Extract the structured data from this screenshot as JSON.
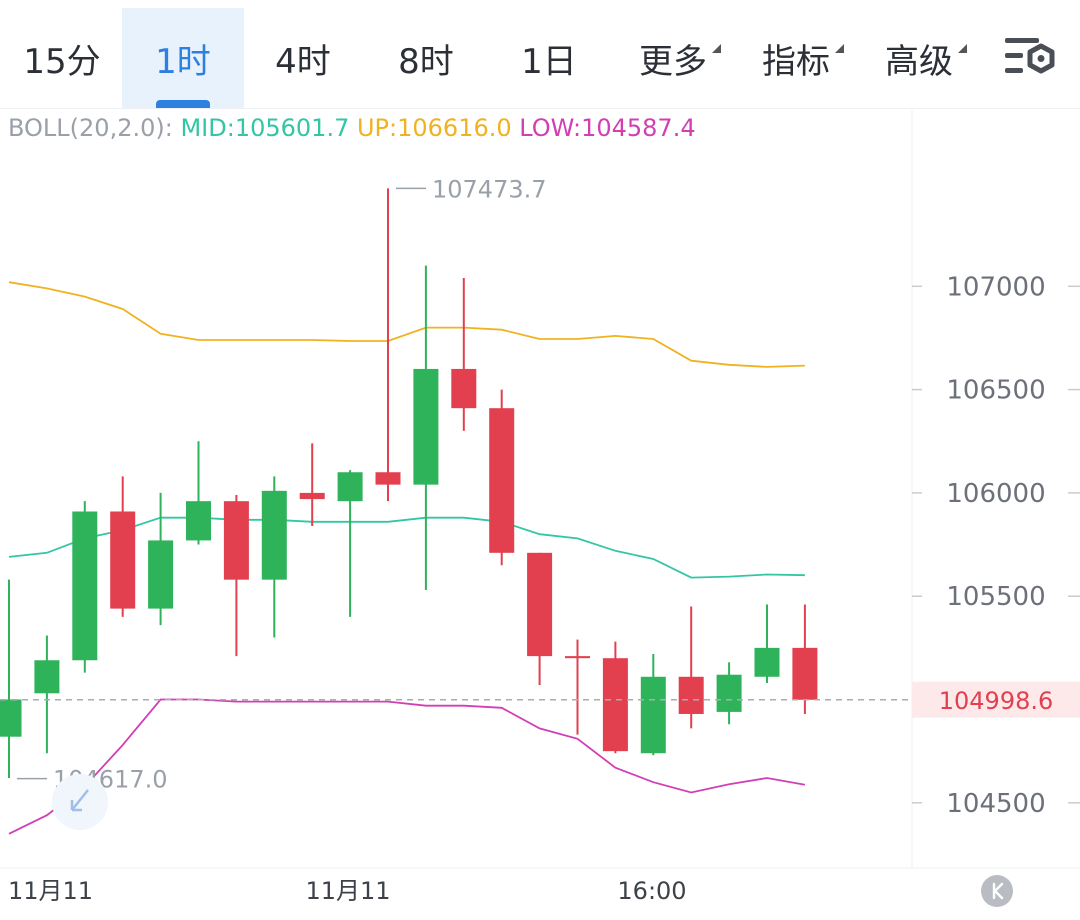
{
  "tabs": [
    {
      "label": "15分",
      "active": false,
      "dropdown": false
    },
    {
      "label": "1时",
      "active": true,
      "dropdown": false
    },
    {
      "label": "4时",
      "active": false,
      "dropdown": false
    },
    {
      "label": "8时",
      "active": false,
      "dropdown": false
    },
    {
      "label": "1日",
      "active": false,
      "dropdown": false
    },
    {
      "label": "更多",
      "active": false,
      "dropdown": true
    },
    {
      "label": "指标",
      "active": false,
      "dropdown": true
    },
    {
      "label": "高级",
      "active": false,
      "dropdown": true
    }
  ],
  "settings_icon": "chart-settings-icon",
  "boll": {
    "name": "BOLL(20,2.0):",
    "mid": "MID:105601.7",
    "up": "UP:106616.0",
    "low": "LOW:104587.4"
  },
  "colors": {
    "up_candle": "#2eb35a",
    "down_candle": "#e2404f",
    "mid": "#33c6a4",
    "upper": "#f0b221",
    "lower": "#d13fb4",
    "accent": "#2d7fe0",
    "price_tag": "#e2404f"
  },
  "chart_data": {
    "type": "candlestick",
    "ylim": [
      104320,
      107650
    ],
    "y_ticks": [
      107000,
      106500,
      106000,
      105500,
      104500
    ],
    "x_tick_labels": [
      {
        "index": 0,
        "label": "11月11"
      },
      {
        "index": 8,
        "label": "11月11"
      },
      {
        "index": 17,
        "label": "16:00"
      }
    ],
    "current_price": 104998.6,
    "current_price_label": "104998.6",
    "high_marker": {
      "index": 10,
      "value": 107473.7,
      "label": "107473.7"
    },
    "low_marker": {
      "index": 0,
      "value": 104617.0,
      "label": "104617.0"
    },
    "candles": [
      {
        "open": 104820,
        "high": 105580,
        "low": 104620,
        "close": 105000
      },
      {
        "open": 105030,
        "high": 105310,
        "low": 104740,
        "close": 105190
      },
      {
        "open": 105190,
        "high": 105960,
        "low": 105130,
        "close": 105910
      },
      {
        "open": 105910,
        "high": 106080,
        "low": 105400,
        "close": 105440
      },
      {
        "open": 105440,
        "high": 106000,
        "low": 105360,
        "close": 105770
      },
      {
        "open": 105770,
        "high": 106250,
        "low": 105750,
        "close": 105960
      },
      {
        "open": 105960,
        "high": 105990,
        "low": 105210,
        "close": 105580
      },
      {
        "open": 105580,
        "high": 106080,
        "low": 105300,
        "close": 106010
      },
      {
        "open": 106000,
        "high": 106240,
        "low": 105840,
        "close": 105970
      },
      {
        "open": 105960,
        "high": 106110,
        "low": 105400,
        "close": 106100
      },
      {
        "open": 106100,
        "high": 107473.7,
        "low": 105960,
        "close": 106040
      },
      {
        "open": 106040,
        "high": 107100,
        "low": 105530,
        "close": 106600
      },
      {
        "open": 106600,
        "high": 107040,
        "low": 106300,
        "close": 106410
      },
      {
        "open": 106410,
        "high": 106500,
        "low": 105650,
        "close": 105710
      },
      {
        "open": 105710,
        "high": 105710,
        "low": 105070,
        "close": 105210
      },
      {
        "open": 105210,
        "high": 105290,
        "low": 104830,
        "close": 105200
      },
      {
        "open": 105200,
        "high": 105280,
        "low": 104740,
        "close": 104750
      },
      {
        "open": 104740,
        "high": 105220,
        "low": 104730,
        "close": 105110
      },
      {
        "open": 105110,
        "high": 105450,
        "low": 104860,
        "close": 104930
      },
      {
        "open": 104940,
        "high": 105180,
        "low": 104880,
        "close": 105120
      },
      {
        "open": 105110,
        "high": 105460,
        "low": 105080,
        "close": 105250
      },
      {
        "open": 105250,
        "high": 105460,
        "low": 104930,
        "close": 104998.6
      }
    ],
    "series": [
      {
        "name": "UP",
        "values": [
          107020,
          106990,
          106950,
          106890,
          106770,
          106740,
          106740,
          106740,
          106740,
          106735,
          106735,
          106800,
          106800,
          106790,
          106745,
          106745,
          106760,
          106745,
          106640,
          106620,
          106610,
          106616
        ]
      },
      {
        "name": "MID",
        "values": [
          105690,
          105710,
          105780,
          105820,
          105880,
          105880,
          105870,
          105870,
          105860,
          105860,
          105860,
          105880,
          105880,
          105860,
          105800,
          105780,
          105720,
          105680,
          105590,
          105595,
          105605,
          105601.7
        ]
      },
      {
        "name": "LOW",
        "values": [
          104350,
          104440,
          104580,
          104780,
          105000,
          105000,
          104990,
          104990,
          104990,
          104990,
          104990,
          104970,
          104970,
          104960,
          104860,
          104810,
          104670,
          104600,
          104550,
          104590,
          104620,
          104587.4
        ]
      }
    ]
  }
}
